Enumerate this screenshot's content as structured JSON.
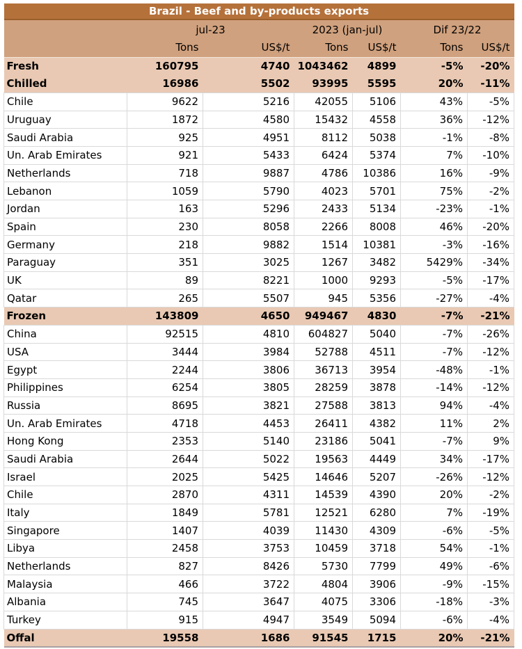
{
  "chart_data": {
    "type": "table",
    "title": "Brazil - Beef and by-products exports",
    "column_groups": [
      {
        "label": "jul-23",
        "span": 2
      },
      {
        "label": "2023 (jan-jul)",
        "span": 2
      },
      {
        "label": "Dif 23/22",
        "span": 2
      }
    ],
    "columns": [
      "",
      "Tons",
      "US$/t",
      "Tons",
      "US$/t",
      "Tons",
      "US$/t"
    ],
    "rows": [
      {
        "name": "Fresh",
        "style": "section",
        "values": [
          "160795",
          "4740",
          "1043462",
          "4899",
          "-5%",
          "-20%"
        ]
      },
      {
        "name": "Chilled",
        "style": "section",
        "values": [
          "16986",
          "5502",
          "93995",
          "5595",
          "20%",
          "-11%"
        ]
      },
      {
        "name": "Chile",
        "style": "country",
        "values": [
          "9622",
          "5216",
          "42055",
          "5106",
          "43%",
          "-5%"
        ]
      },
      {
        "name": "Uruguay",
        "style": "country",
        "values": [
          "1872",
          "4580",
          "15432",
          "4558",
          "36%",
          "-12%"
        ]
      },
      {
        "name": "Saudi Arabia",
        "style": "country",
        "values": [
          "925",
          "4951",
          "8112",
          "5038",
          "-1%",
          "-8%"
        ]
      },
      {
        "name": "Un. Arab Emirates",
        "style": "country",
        "values": [
          "921",
          "5433",
          "6424",
          "5374",
          "7%",
          "-10%"
        ]
      },
      {
        "name": "Netherlands",
        "style": "country",
        "values": [
          "718",
          "9887",
          "4786",
          "10386",
          "16%",
          "-9%"
        ]
      },
      {
        "name": "Lebanon",
        "style": "country",
        "values": [
          "1059",
          "5790",
          "4023",
          "5701",
          "75%",
          "-2%"
        ]
      },
      {
        "name": "Jordan",
        "style": "country",
        "values": [
          "163",
          "5296",
          "2433",
          "5134",
          "-23%",
          "-1%"
        ]
      },
      {
        "name": "Spain",
        "style": "country",
        "values": [
          "230",
          "8058",
          "2266",
          "8008",
          "46%",
          "-20%"
        ]
      },
      {
        "name": "Germany",
        "style": "country",
        "values": [
          "218",
          "9882",
          "1514",
          "10381",
          "-3%",
          "-16%"
        ]
      },
      {
        "name": "Paraguay",
        "style": "country",
        "values": [
          "351",
          "3025",
          "1267",
          "3482",
          "5429%",
          "-34%"
        ]
      },
      {
        "name": "UK",
        "style": "country",
        "values": [
          "89",
          "8221",
          "1000",
          "9293",
          "-5%",
          "-17%"
        ]
      },
      {
        "name": "Qatar",
        "style": "country",
        "values": [
          "265",
          "5507",
          "945",
          "5356",
          "-27%",
          "-4%"
        ]
      },
      {
        "name": "Frozen",
        "style": "section",
        "values": [
          "143809",
          "4650",
          "949467",
          "4830",
          "-7%",
          "-21%"
        ]
      },
      {
        "name": "China",
        "style": "country",
        "values": [
          "92515",
          "4810",
          "604827",
          "5040",
          "-7%",
          "-26%"
        ]
      },
      {
        "name": "USA",
        "style": "country",
        "values": [
          "3444",
          "3984",
          "52788",
          "4511",
          "-7%",
          "-12%"
        ]
      },
      {
        "name": "Egypt",
        "style": "country",
        "values": [
          "2244",
          "3806",
          "36713",
          "3954",
          "-48%",
          "-1%"
        ]
      },
      {
        "name": "Philippines",
        "style": "country",
        "values": [
          "6254",
          "3805",
          "28259",
          "3878",
          "-14%",
          "-12%"
        ]
      },
      {
        "name": "Russia",
        "style": "country",
        "values": [
          "8695",
          "3821",
          "27588",
          "3813",
          "94%",
          "-4%"
        ]
      },
      {
        "name": "Un. Arab Emirates",
        "style": "country",
        "values": [
          "4718",
          "4453",
          "26411",
          "4382",
          "11%",
          "2%"
        ]
      },
      {
        "name": "Hong Kong",
        "style": "country",
        "values": [
          "2353",
          "5140",
          "23186",
          "5041",
          "-7%",
          "9%"
        ]
      },
      {
        "name": "Saudi Arabia",
        "style": "country",
        "values": [
          "2644",
          "5022",
          "19563",
          "4449",
          "34%",
          "-17%"
        ]
      },
      {
        "name": "Israel",
        "style": "country",
        "values": [
          "2025",
          "5425",
          "14646",
          "5207",
          "-26%",
          "-12%"
        ]
      },
      {
        "name": "Chile",
        "style": "country",
        "values": [
          "2870",
          "4311",
          "14539",
          "4390",
          "20%",
          "-2%"
        ]
      },
      {
        "name": "Italy",
        "style": "country",
        "values": [
          "1849",
          "5781",
          "12521",
          "6280",
          "7%",
          "-19%"
        ]
      },
      {
        "name": "Singapore",
        "style": "country",
        "values": [
          "1407",
          "4039",
          "11430",
          "4309",
          "-6%",
          "-5%"
        ]
      },
      {
        "name": "Libya",
        "style": "country",
        "values": [
          "2458",
          "3753",
          "10459",
          "3718",
          "54%",
          "-1%"
        ]
      },
      {
        "name": "Netherlands",
        "style": "country",
        "values": [
          "827",
          "8426",
          "5730",
          "7799",
          "49%",
          "-6%"
        ]
      },
      {
        "name": "Malaysia",
        "style": "country",
        "values": [
          "466",
          "3722",
          "4804",
          "3906",
          "-9%",
          "-15%"
        ]
      },
      {
        "name": "Albania",
        "style": "country",
        "values": [
          "745",
          "3647",
          "4075",
          "3306",
          "-18%",
          "-3%"
        ]
      },
      {
        "name": "Turkey",
        "style": "country",
        "values": [
          "915",
          "4947",
          "3549",
          "5094",
          "-6%",
          "-4%"
        ]
      },
      {
        "name": "Offal",
        "style": "section",
        "values": [
          "19558",
          "1686",
          "91545",
          "1715",
          "20%",
          "-21%"
        ]
      }
    ]
  },
  "colors": {
    "title_bg": "#b5713a",
    "title_text": "#ffffff",
    "title_line": "#9a5e2c",
    "header_bg": "#d0a17e",
    "section_bg": "#e9c9b3",
    "row_bg": "#ffffff",
    "grid": "#d9d9d9",
    "text": "#000000",
    "bottom_line": "#a8a0a0"
  }
}
